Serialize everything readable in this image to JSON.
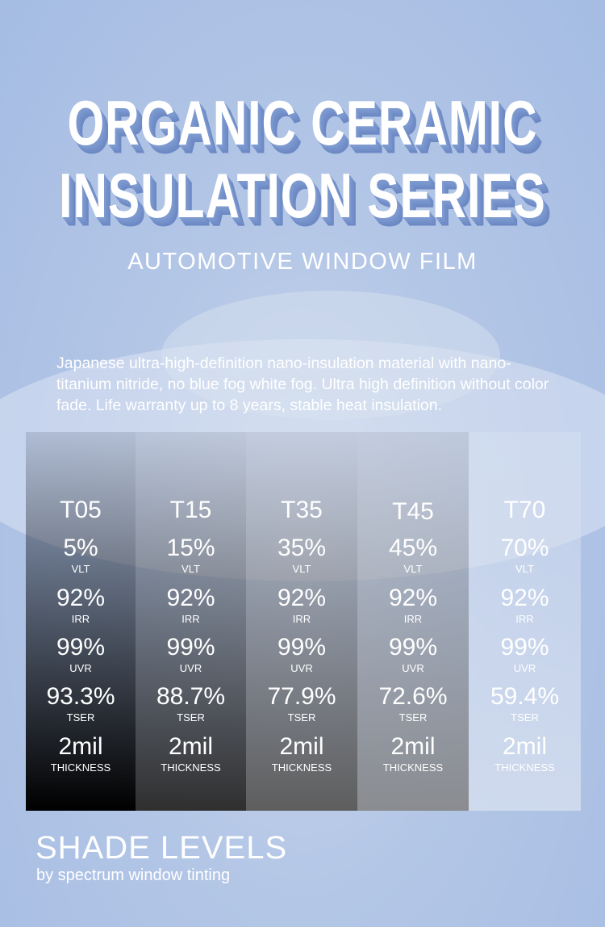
{
  "header": {
    "title_lines": [
      "ORGANIC CERAMIC",
      "INSULATION SERIES"
    ],
    "subtitle": "AUTOMOTIVE WINDOW FILM"
  },
  "description": "Japanese ultra-high-definition nano-insulation material with nano-titanium nitride, no blue fog white fog. Ultra high definition without color fade. Life warranty up to 8 years, stable heat insulation.",
  "table": {
    "columns": [
      {
        "name": "T05",
        "rows": [
          {
            "value": "5%",
            "label": "VLT"
          },
          {
            "value": "92%",
            "label": "IRR"
          },
          {
            "value": "99%",
            "label": "UVR"
          },
          {
            "value": "93.3%",
            "label": "TSER"
          },
          {
            "value": "2mil",
            "label": "THICKNESS"
          }
        ]
      },
      {
        "name": "T15",
        "rows": [
          {
            "value": "15%",
            "label": "VLT"
          },
          {
            "value": "92%",
            "label": "IRR"
          },
          {
            "value": "99%",
            "label": "UVR"
          },
          {
            "value": "88.7%",
            "label": "TSER"
          },
          {
            "value": "2mil",
            "label": "THICKNESS"
          }
        ]
      },
      {
        "name": "T35",
        "rows": [
          {
            "value": "35%",
            "label": "VLT"
          },
          {
            "value": "92%",
            "label": "IRR"
          },
          {
            "value": "99%",
            "label": "UVR"
          },
          {
            "value": "77.9%",
            "label": "TSER"
          },
          {
            "value": "2mil",
            "label": "THICKNESS"
          }
        ]
      },
      {
        "name": "T45",
        "rows": [
          {
            "value": "45%",
            "label": "VLT"
          },
          {
            "value": "92%",
            "label": "IRR"
          },
          {
            "value": "99%",
            "label": "UVR"
          },
          {
            "value": "72.6%",
            "label": "TSER"
          },
          {
            "value": "2mil",
            "label": "THICKNESS"
          }
        ]
      },
      {
        "name": "T70",
        "rows": [
          {
            "value": "70%",
            "label": "VLT"
          },
          {
            "value": "92%",
            "label": "IRR"
          },
          {
            "value": "99%",
            "label": "UVR"
          },
          {
            "value": "59.4%",
            "label": "TSER"
          },
          {
            "value": "2mil",
            "label": "THICKNESS"
          }
        ]
      }
    ]
  },
  "footer": {
    "title": "SHADE LEVELS",
    "credit": "by spectrum window tinting"
  }
}
